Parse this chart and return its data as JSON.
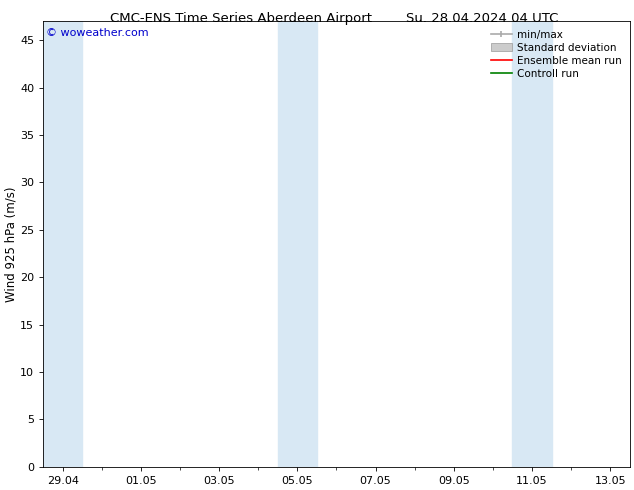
{
  "title_left": "CMC-ENS Time Series Aberdeen Airport",
  "title_right": "Su. 28.04.2024 04 UTC",
  "ylabel": "Wind 925 hPa (m/s)",
  "watermark": "© woweather.com",
  "x_tick_labels": [
    "29.04",
    "01.05",
    "03.05",
    "05.05",
    "07.05",
    "09.05",
    "11.05",
    "13.05"
  ],
  "x_tick_positions": [
    0,
    2,
    4,
    6,
    8,
    10,
    12,
    14
  ],
  "ylim": [
    0,
    47
  ],
  "yticks": [
    0,
    5,
    10,
    15,
    20,
    25,
    30,
    35,
    40,
    45
  ],
  "shaded_bands": [
    {
      "xmin": -0.5,
      "xmax": 0.5
    },
    {
      "xmin": 5.5,
      "xmax": 6.5
    },
    {
      "xmin": 11.5,
      "xmax": 12.5
    }
  ],
  "shaded_color": "#d8e8f4",
  "bg_color": "#ffffff",
  "plot_bg_color": "#ffffff",
  "legend_items": [
    {
      "label": "min/max",
      "color": "#aaaaaa",
      "type": "minmax"
    },
    {
      "label": "Standard deviation",
      "color": "#cccccc",
      "type": "stdev"
    },
    {
      "label": "Ensemble mean run",
      "color": "#ff0000",
      "type": "line"
    },
    {
      "label": "Controll run",
      "color": "#008000",
      "type": "line"
    }
  ],
  "title_fontsize": 9.5,
  "tick_fontsize": 8,
  "ylabel_fontsize": 8.5,
  "watermark_fontsize": 8,
  "legend_fontsize": 7.5
}
